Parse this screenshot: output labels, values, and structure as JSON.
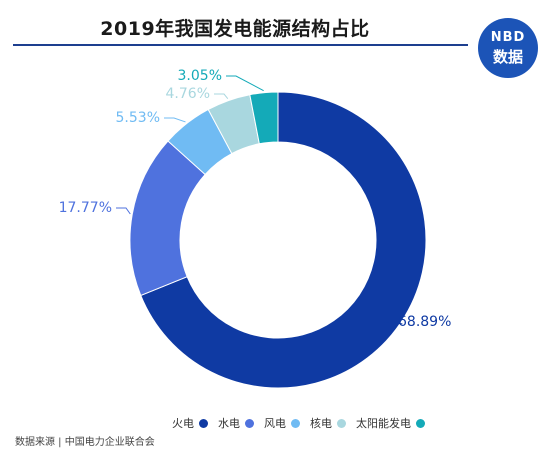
{
  "title": "2019年我国发电能源结构占比",
  "logo": {
    "top": "NBD",
    "bottom": "数据"
  },
  "source": "数据来源 | 中国电力企业联合会",
  "chart_data": {
    "type": "pie",
    "title": "2019年我国发电能源结构占比",
    "categories": [
      "火电",
      "水电",
      "风电",
      "核电",
      "太阳能发电"
    ],
    "values": [
      68.89,
      17.77,
      5.53,
      4.76,
      3.05
    ],
    "labels": [
      "68.89%",
      "17.77%",
      "5.53%",
      "4.76%",
      "3.05%"
    ],
    "colors": [
      "#0f3aa3",
      "#4f72de",
      "#70bbf3",
      "#a9d7df",
      "#14aab8"
    ],
    "donut": true,
    "legend_position": "bottom"
  }
}
